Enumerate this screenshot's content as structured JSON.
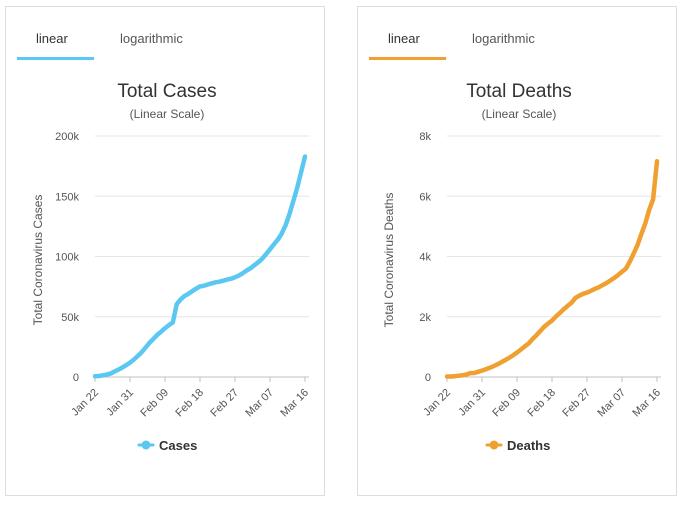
{
  "panels": [
    {
      "tabs": {
        "linear": "linear",
        "logarithmic": "logarithmic"
      },
      "accent": "#5bc8f2",
      "chart_data": {
        "type": "line",
        "title": "Total Cases",
        "subtitle": "(Linear Scale)",
        "ylabel": "Total Coronavirus Cases",
        "ylim": [
          0,
          200000
        ],
        "yticks": [
          0,
          50000,
          100000,
          150000,
          200000
        ],
        "ytick_labels": [
          "0",
          "50k",
          "100k",
          "150k",
          "200k"
        ],
        "x": [
          "Jan 22",
          "Jan 23",
          "Jan 24",
          "Jan 25",
          "Jan 26",
          "Jan 27",
          "Jan 28",
          "Jan 29",
          "Jan 30",
          "Jan 31",
          "Feb 01",
          "Feb 02",
          "Feb 03",
          "Feb 04",
          "Feb 05",
          "Feb 06",
          "Feb 07",
          "Feb 08",
          "Feb 09",
          "Feb 10",
          "Feb 11",
          "Feb 12",
          "Feb 13",
          "Feb 14",
          "Feb 15",
          "Feb 16",
          "Feb 17",
          "Feb 18",
          "Feb 19",
          "Feb 20",
          "Feb 21",
          "Feb 22",
          "Feb 23",
          "Feb 24",
          "Feb 25",
          "Feb 26",
          "Feb 27",
          "Feb 28",
          "Feb 29",
          "Mar 01",
          "Mar 02",
          "Mar 03",
          "Mar 04",
          "Mar 05",
          "Mar 06",
          "Mar 07",
          "Mar 08",
          "Mar 09",
          "Mar 10",
          "Mar 11",
          "Mar 12",
          "Mar 13",
          "Mar 14",
          "Mar 15",
          "Mar 16"
        ],
        "xtick_labels": [
          "Jan 22",
          "Jan 31",
          "Feb 09",
          "Feb 18",
          "Feb 27",
          "Mar 07",
          "Mar 16"
        ],
        "series": [
          {
            "name": "Cases",
            "values": [
              580,
              845,
              1320,
              2015,
              2800,
              4600,
              6060,
              7820,
              9830,
              11950,
              14550,
              17400,
              20600,
              24500,
              28300,
              31500,
              34900,
              37600,
              40500,
              43100,
              45200,
              60400,
              64400,
              67100,
              69000,
              71200,
              73300,
              75200,
              75700,
              76800,
              77800,
              78600,
              79100,
              79900,
              80800,
              81600,
              82700,
              84200,
              86100,
              88400,
              90300,
              92800,
              95300,
              98200,
              102000,
              106000,
              110000,
              114000,
              119000,
              126000,
              135000,
              146000,
              157000,
              170000,
              183000
            ]
          }
        ],
        "legend": "bottom-center"
      }
    },
    {
      "tabs": {
        "linear": "linear",
        "logarithmic": "logarithmic"
      },
      "accent": "#f0a030",
      "chart_data": {
        "type": "line",
        "title": "Total Deaths",
        "subtitle": "(Linear Scale)",
        "ylabel": "Total Coronavirus Deaths",
        "ylim": [
          0,
          8000
        ],
        "yticks": [
          0,
          2000,
          4000,
          6000,
          8000
        ],
        "ytick_labels": [
          "0",
          "2k",
          "4k",
          "6k",
          "8k"
        ],
        "x": [
          "Jan 22",
          "Jan 23",
          "Jan 24",
          "Jan 25",
          "Jan 26",
          "Jan 27",
          "Jan 28",
          "Jan 29",
          "Jan 30",
          "Jan 31",
          "Feb 01",
          "Feb 02",
          "Feb 03",
          "Feb 04",
          "Feb 05",
          "Feb 06",
          "Feb 07",
          "Feb 08",
          "Feb 09",
          "Feb 10",
          "Feb 11",
          "Feb 12",
          "Feb 13",
          "Feb 14",
          "Feb 15",
          "Feb 16",
          "Feb 17",
          "Feb 18",
          "Feb 19",
          "Feb 20",
          "Feb 21",
          "Feb 22",
          "Feb 23",
          "Feb 24",
          "Feb 25",
          "Feb 26",
          "Feb 27",
          "Feb 28",
          "Feb 29",
          "Mar 01",
          "Mar 02",
          "Mar 03",
          "Mar 04",
          "Mar 05",
          "Mar 06",
          "Mar 07",
          "Mar 08",
          "Mar 09",
          "Mar 10",
          "Mar 11",
          "Mar 12",
          "Mar 13",
          "Mar 14",
          "Mar 15",
          "Mar 16"
        ],
        "xtick_labels": [
          "Jan 22",
          "Jan 31",
          "Feb 09",
          "Feb 18",
          "Feb 27",
          "Mar 07",
          "Mar 16"
        ],
        "series": [
          {
            "name": "Deaths",
            "values": [
              17,
              18,
              26,
              42,
              56,
              82,
              131,
              133,
              171,
              213,
              259,
              304,
              362,
              426,
              492,
              565,
              638,
              724,
              813,
              910,
              1018,
              1115,
              1261,
              1383,
              1526,
              1669,
              1775,
              1873,
              2009,
              2126,
              2247,
              2360,
              2460,
              2618,
              2699,
              2763,
              2800,
              2858,
              2923,
              2977,
              3050,
              3117,
              3202,
              3285,
              3387,
              3491,
              3600,
              3830,
              4100,
              4390,
              4750,
              5100,
              5550,
              5900,
              7160
            ]
          }
        ],
        "legend": "bottom-center"
      }
    }
  ]
}
